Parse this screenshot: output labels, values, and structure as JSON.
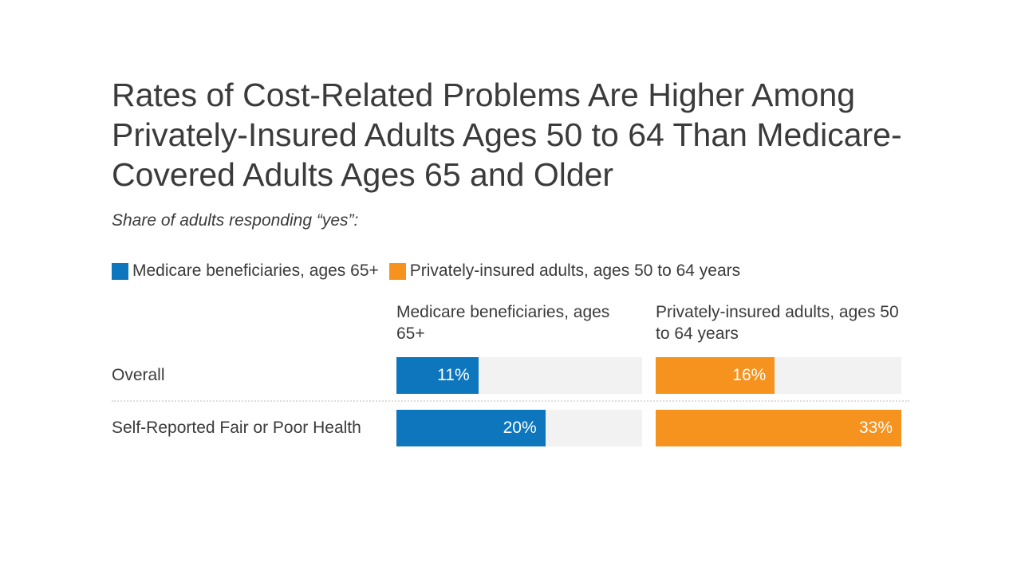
{
  "page": {
    "title": "Rates of Cost-Related Problems Are Higher Among Privately-Insured Adults Ages 50 to 64 Than Medicare-Covered Adults Ages 65 and Older",
    "subtitle": "Share of adults responding “yes”:",
    "background": "#ffffff",
    "text_color": "#3b3b3b"
  },
  "legend": {
    "position": "top",
    "items": [
      {
        "label": "Medicare beneficiaries, ages 65+",
        "color": "#0d76bd"
      },
      {
        "label": "Privately-insured adults, ages 50 to 64 years",
        "color": "#f6921e"
      }
    ]
  },
  "chart_data": {
    "type": "bar",
    "orientation": "horizontal",
    "title": "Rates of Cost-Related Problems Are Higher Among Privately-Insured Adults Ages 50 to 64 Than Medicare-Covered Adults Ages 65 and Older",
    "subtitle": "Share of adults responding “yes”:",
    "categories": [
      "Overall",
      "Self-Reported Fair or Poor Health"
    ],
    "column_headers": [
      "Medicare beneficiaries, ages 65+",
      "Privately-insured adults, ages 50 to 64 years"
    ],
    "series": [
      {
        "name": "Medicare beneficiaries, ages 65+",
        "color": "#0d76bd",
        "values": [
          11,
          20
        ],
        "value_labels": [
          "11%",
          "20%"
        ]
      },
      {
        "name": "Privately-insured adults, ages 50 to 64 years",
        "color": "#f6921e",
        "values": [
          16,
          33
        ],
        "value_labels": [
          "16%",
          "33%"
        ]
      }
    ],
    "unit": "%",
    "axis_max": 33,
    "track_color": "#f2f2f2",
    "grid": false,
    "legend_position": "top"
  }
}
